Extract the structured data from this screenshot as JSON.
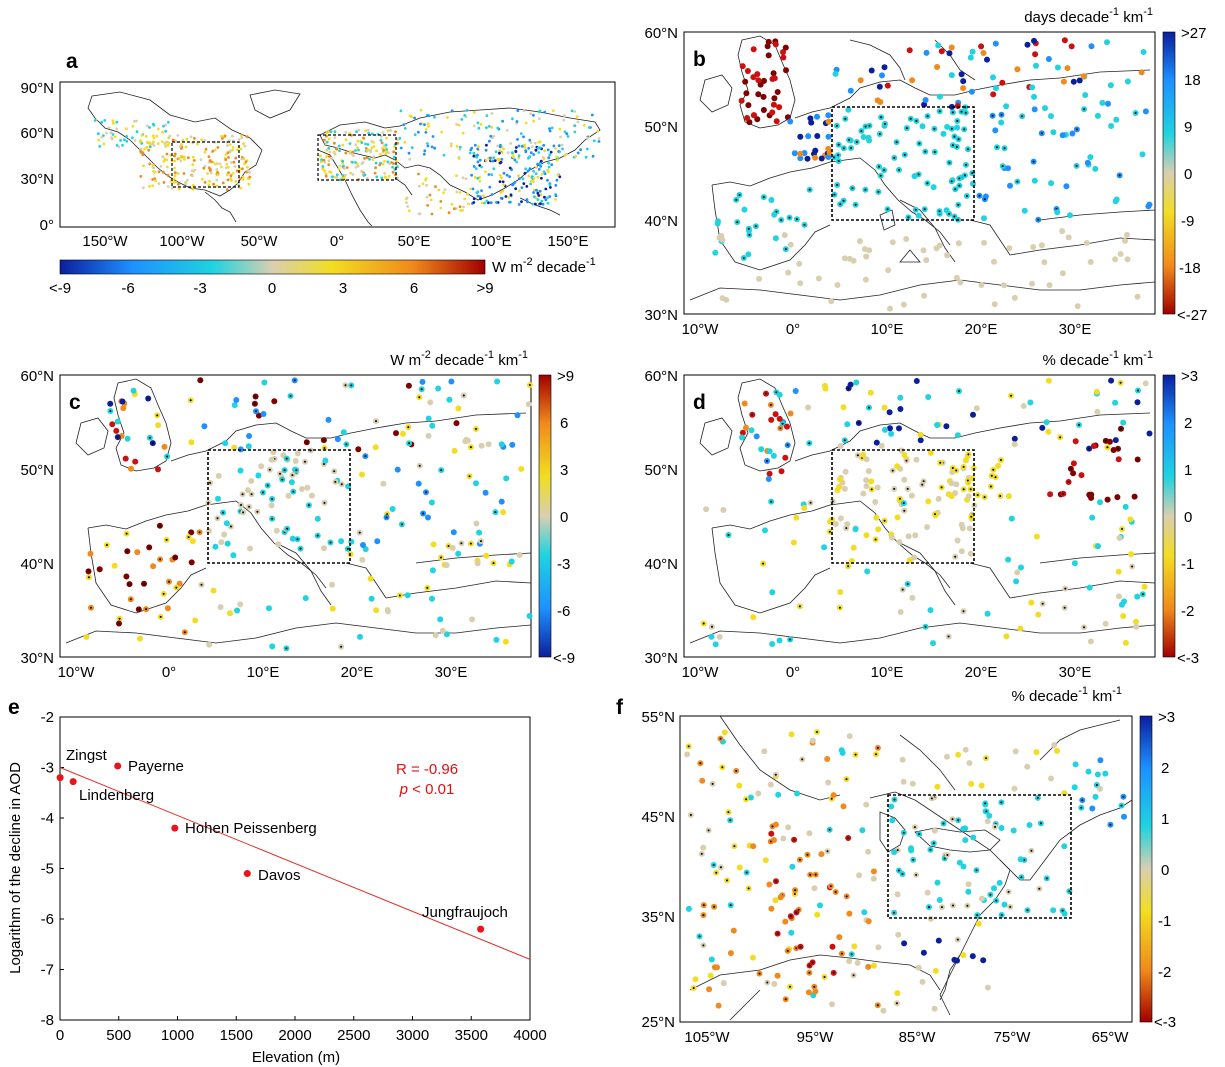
{
  "colors": {
    "neg_high": "#0b1f9c",
    "neg_mid": "#1e90ff",
    "cyan": "#1fd3e0",
    "neutral": "#d9cfb0",
    "yellow": "#f2dd22",
    "orange": "#f08a1c",
    "red": "#cc1010",
    "darkred": "#800000",
    "regression": "#e0302a",
    "annotation": "#e01010",
    "coast": "#222222"
  },
  "panels": {
    "a": {
      "label": "a",
      "yticks": [
        "90°N",
        "60°N",
        "30°N",
        "0°"
      ],
      "xticks": [
        "150°W",
        "100°W",
        "50°W",
        "0°",
        "50°E",
        "100°E",
        "150°E"
      ],
      "colorbar": {
        "unit_pre": "W m",
        "unit_sup": "-2",
        "unit_post": " decade",
        "unit_sup2": "-1",
        "ticks": [
          "<-9",
          "-6",
          "-3",
          "0",
          "3",
          "6",
          ">9"
        ]
      }
    },
    "b": {
      "label": "b",
      "unit_pre": "days decade",
      "unit_sup": "-1",
      "unit_post": " km",
      "unit_sup2": "-1",
      "yticks": [
        "60°N",
        "50°N",
        "40°N",
        "30°N"
      ],
      "xticks": [
        "10°W",
        "0°",
        "10°E",
        "20°E",
        "30°E"
      ],
      "cbar_ticks": [
        ">27",
        "18",
        "9",
        "0",
        "-9",
        "-18",
        "<-27"
      ]
    },
    "c": {
      "label": "c",
      "unit_pre": "W m",
      "unit_sup": "-2",
      "unit_post": " decade",
      "unit_sup2": "-1",
      "unit_post2": " km",
      "unit_sup3": "-1",
      "yticks": [
        "60°N",
        "50°N",
        "40°N",
        "30°N"
      ],
      "xticks": [
        "10°W",
        "0°",
        "10°E",
        "20°E",
        "30°E"
      ],
      "cbar_ticks": [
        ">9",
        "6",
        "3",
        "0",
        "-3",
        "-6",
        "<-9"
      ]
    },
    "d": {
      "label": "d",
      "unit_pre": "% decade",
      "unit_sup": "-1",
      "unit_post": " km",
      "unit_sup2": "-1",
      "yticks": [
        "60°N",
        "50°N",
        "40°N",
        "30°N"
      ],
      "xticks": [
        "10°W",
        "0°",
        "10°E",
        "20°E",
        "30°E"
      ],
      "cbar_ticks": [
        ">3",
        "2",
        "1",
        "0",
        "-1",
        "-2",
        "<-3"
      ]
    },
    "f": {
      "label": "f",
      "unit_pre": "% decade",
      "unit_sup": "-1",
      "unit_post": " km",
      "unit_sup2": "-1",
      "yticks": [
        "55°N",
        "45°N",
        "35°N",
        "25°N"
      ],
      "xticks": [
        "105°W",
        "95°W",
        "85°W",
        "75°W",
        "65°W"
      ],
      "cbar_ticks": [
        ">3",
        "2",
        "1",
        "0",
        "-1",
        "-2",
        "<-3"
      ]
    }
  },
  "chart_data": {
    "type": "scatter",
    "panel_label": "e",
    "xlabel": "Elevation (m)",
    "ylabel": "Logarithm of the decline in AOD",
    "xlim": [
      0,
      4000
    ],
    "ylim": [
      -8,
      -2
    ],
    "xticks": [
      "0",
      "500",
      "1000",
      "1500",
      "2000",
      "2500",
      "3000",
      "3500",
      "4000"
    ],
    "yticks": [
      "-2",
      "-3",
      "-4",
      "-5",
      "-6",
      "-7",
      "-8"
    ],
    "points": [
      {
        "name": "Zingst",
        "x": 1,
        "y": -3.2
      },
      {
        "name": "Lindenberg",
        "x": 112,
        "y": -3.28
      },
      {
        "name": "Payerne",
        "x": 491,
        "y": -2.97
      },
      {
        "name": "Hohen Peissenberg",
        "x": 977,
        "y": -4.2
      },
      {
        "name": "Davos",
        "x": 1594,
        "y": -5.1
      },
      {
        "name": "Jungfraujoch",
        "x": 3580,
        "y": -6.2
      }
    ],
    "regression": {
      "x0": 0,
      "y0": -3.0,
      "x1": 4000,
      "y1": -6.8
    },
    "stat_r": "R = -0.96",
    "stat_p_italic": "p",
    "stat_p_rest": " < 0.01"
  }
}
